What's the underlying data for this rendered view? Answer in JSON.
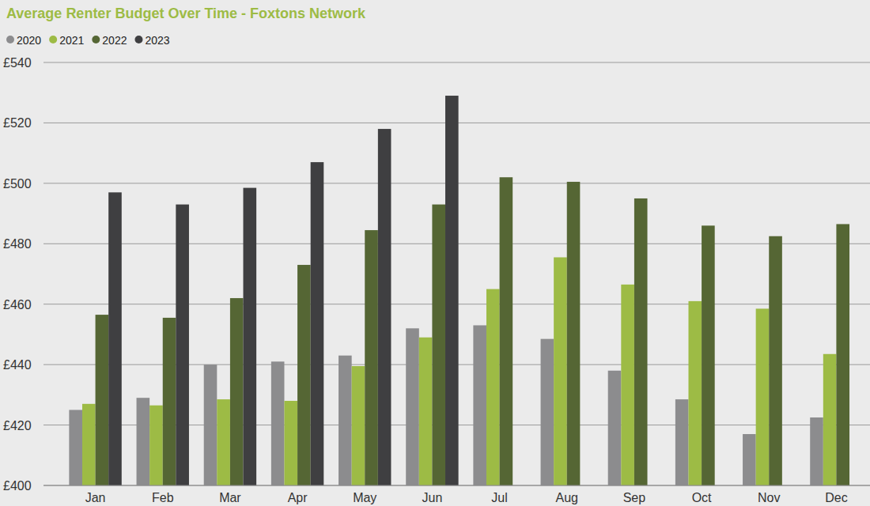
{
  "chart_data": {
    "type": "bar",
    "title": "Average Renter Budget Over Time - Foxtons Network",
    "categories": [
      "Jan",
      "Feb",
      "Mar",
      "Apr",
      "May",
      "Jun",
      "Jul",
      "Aug",
      "Sep",
      "Oct",
      "Nov",
      "Dec"
    ],
    "series": [
      {
        "name": "2020",
        "color": "#8c8c8e",
        "values": [
          425,
          429,
          440,
          441,
          443,
          452,
          453,
          448.5,
          438,
          428.5,
          417,
          422.5
        ]
      },
      {
        "name": "2021",
        "color": "#9dbb45",
        "values": [
          427,
          426.5,
          428.5,
          428,
          439.5,
          449,
          465,
          475.5,
          466.5,
          461,
          458.5,
          443.5
        ]
      },
      {
        "name": "2022",
        "color": "#556634",
        "values": [
          456.5,
          455.5,
          462,
          473,
          484.5,
          493,
          502,
          500.5,
          495,
          486,
          482.5,
          486.5
        ]
      },
      {
        "name": "2023",
        "color": "#3f3f41",
        "values": [
          497,
          493,
          498.5,
          507,
          518,
          529,
          null,
          null,
          null,
          null,
          null,
          null
        ]
      }
    ],
    "ylim": [
      400,
      540
    ],
    "yticks": [
      {
        "value": 400,
        "label": "£400"
      },
      {
        "value": 420,
        "label": "£420"
      },
      {
        "value": 440,
        "label": "£440"
      },
      {
        "value": 460,
        "label": "£460"
      },
      {
        "value": 480,
        "label": "£480"
      },
      {
        "value": 500,
        "label": "£500"
      },
      {
        "value": 520,
        "label": "£520"
      },
      {
        "value": 540,
        "label": "£540"
      }
    ],
    "grid": true,
    "legend": "top-left"
  }
}
